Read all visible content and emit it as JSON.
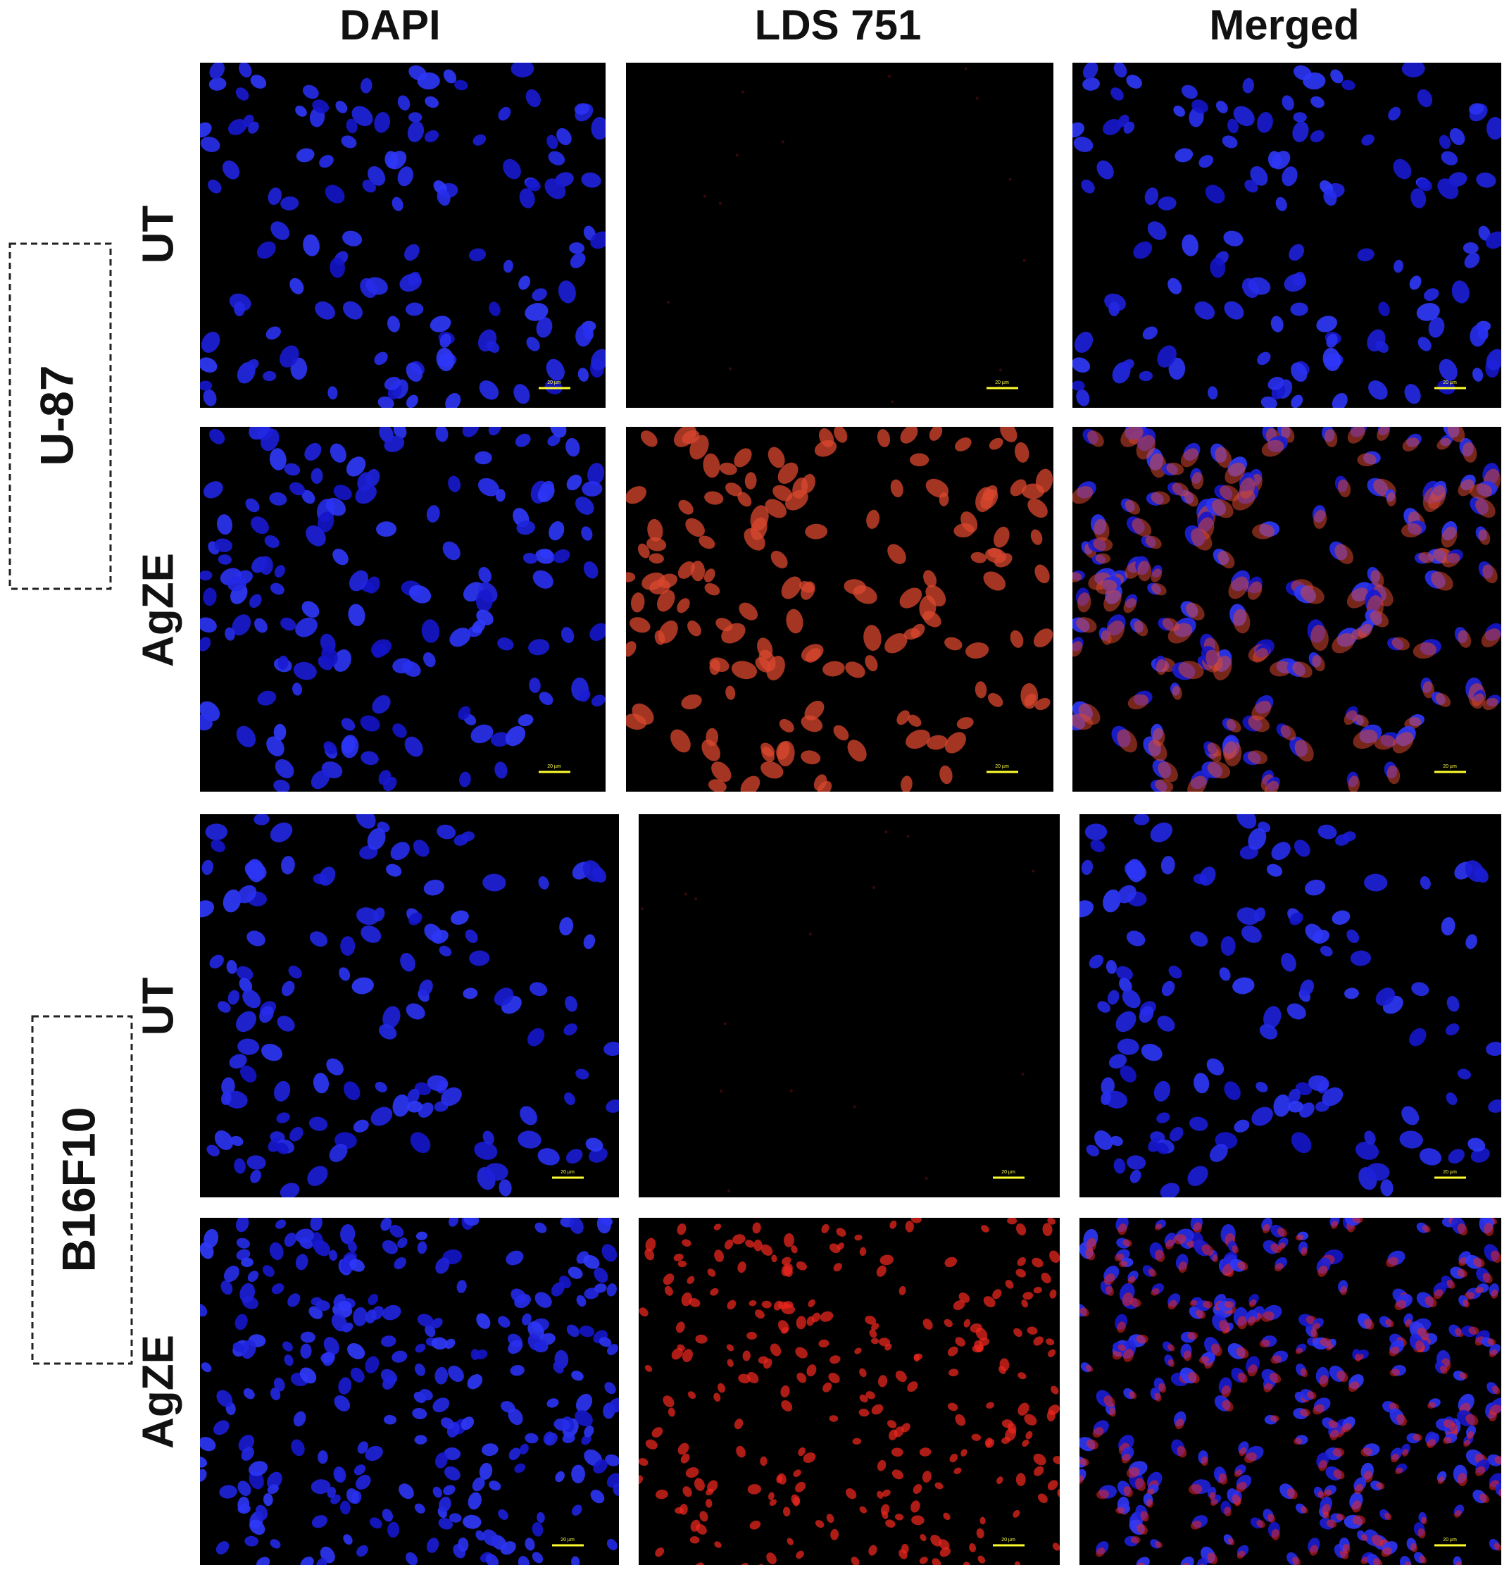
{
  "column_headers": [
    "DAPI",
    "LDS 751",
    "Merged"
  ],
  "groups": [
    {
      "label": "U-87",
      "rows": [
        "UT",
        "AgZE"
      ]
    },
    {
      "label": "B16F10",
      "rows": [
        "UT",
        "AgZE"
      ]
    }
  ],
  "scale_bar_label": "20 µm"
}
